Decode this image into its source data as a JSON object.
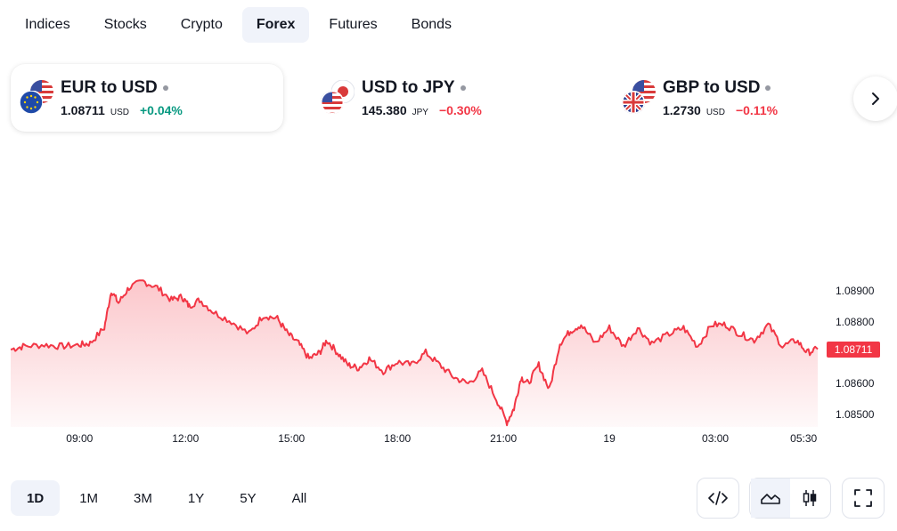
{
  "tabs": [
    {
      "label": "Indices",
      "active": false
    },
    {
      "label": "Stocks",
      "active": false
    },
    {
      "label": "Crypto",
      "active": false
    },
    {
      "label": "Forex",
      "active": true
    },
    {
      "label": "Futures",
      "active": false
    },
    {
      "label": "Bonds",
      "active": false
    }
  ],
  "cards": [
    {
      "title": "EUR to USD",
      "price": "1.08711",
      "unit": "USD",
      "change": "+0.04%",
      "direction": "up",
      "active": true,
      "flags": [
        "us-flag-icon",
        "eu-flag-icon"
      ]
    },
    {
      "title": "USD to JPY",
      "price": "145.380",
      "unit": "JPY",
      "change": "−0.30%",
      "direction": "down",
      "active": false,
      "flags": [
        "jp-flag-icon",
        "us-flag-icon"
      ]
    },
    {
      "title": "GBP to USD",
      "price": "1.2730",
      "unit": "USD",
      "change": "−0.11%",
      "direction": "down",
      "active": false,
      "flags": [
        "us-flag-icon",
        "gb-flag-icon"
      ]
    }
  ],
  "next_icon": "chevron-right-icon",
  "ranges": [
    {
      "label": "1D",
      "active": true
    },
    {
      "label": "1M",
      "active": false
    },
    {
      "label": "3M",
      "active": false
    },
    {
      "label": "1Y",
      "active": false
    },
    {
      "label": "5Y",
      "active": false
    },
    {
      "label": "All",
      "active": false
    }
  ],
  "tools": {
    "embed_icon": "code-icon",
    "area_icon": "area-chart-icon",
    "candle_icon": "candlestick-icon",
    "fullscreen_icon": "fullscreen-icon"
  },
  "colors": {
    "line": "#f23645",
    "up": "#089981",
    "down": "#f23645",
    "active_bg": "#f0f3fa"
  },
  "chart_data": {
    "type": "area",
    "series_name": "",
    "current_value_label": "1.08711",
    "yticks": [
      "1.08900",
      "1.08800",
      "1.08600",
      "1.08500"
    ],
    "ytick_values": [
      1.089,
      1.088,
      1.086,
      1.085
    ],
    "ylim": [
      1.0846,
      1.0935
    ],
    "xticks": [
      "09:00",
      "12:00",
      "15:00",
      "18:00",
      "21:00",
      "19",
      "03:00",
      "05:30"
    ],
    "x_hours": [
      0,
      3,
      6,
      9,
      12,
      15,
      18,
      20.5
    ],
    "xlim_hours": [
      -1.95,
      21.0
    ],
    "x": [
      -1.95,
      -1.6,
      -1.0,
      -0.5,
      0.0,
      0.3,
      0.7,
      0.9,
      1.1,
      1.4,
      1.8,
      2.2,
      2.6,
      2.9,
      3.1,
      3.4,
      3.8,
      4.3,
      4.8,
      5.2,
      5.6,
      5.9,
      6.2,
      6.5,
      6.8,
      7.0,
      7.3,
      7.6,
      7.9,
      8.2,
      8.6,
      9.0,
      9.4,
      9.8,
      10.2,
      10.6,
      11.0,
      11.4,
      11.8,
      12.1,
      12.3,
      12.5,
      12.7,
      13.0,
      13.3,
      13.6,
      13.9,
      14.2,
      14.6,
      15.0,
      15.4,
      15.8,
      16.2,
      16.7,
      17.1,
      17.5,
      17.9,
      18.3,
      18.7,
      19.1,
      19.5,
      19.9,
      20.3,
      20.6,
      20.9
    ],
    "y": [
      1.0871,
      1.0872,
      1.08725,
      1.0872,
      1.08725,
      1.0873,
      1.0878,
      1.089,
      1.0886,
      1.0891,
      1.0893,
      1.0891,
      1.0887,
      1.0888,
      1.0885,
      1.0887,
      1.0883,
      1.088,
      1.0876,
      1.0882,
      1.0881,
      1.0876,
      1.0873,
      1.0868,
      1.087,
      1.0874,
      1.087,
      1.0866,
      1.0865,
      1.0868,
      1.0864,
      1.0867,
      1.0866,
      1.087,
      1.0866,
      1.0862,
      1.086,
      1.0864,
      1.0855,
      1.08475,
      1.0852,
      1.0862,
      1.086,
      1.0866,
      1.0858,
      1.0873,
      1.0877,
      1.0879,
      1.0873,
      1.0878,
      1.0872,
      1.0878,
      1.0873,
      1.0876,
      1.0878,
      1.0872,
      1.0879,
      1.0879,
      1.0876,
      1.0874,
      1.0879,
      1.0872,
      1.0874,
      1.087,
      1.08711
    ]
  }
}
